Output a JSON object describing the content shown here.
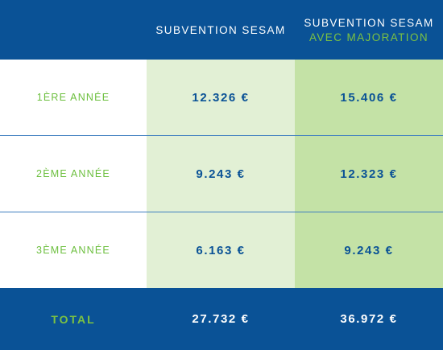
{
  "header": {
    "col1": "",
    "col2": "SUBVENTION SESAM",
    "col3_line1": "SUBVENTION SESAM",
    "col3_line2": "AVEC MAJORATION"
  },
  "rows": [
    {
      "label": "1ÈRE ANNÉE",
      "subvention": "12.326 €",
      "majoration": "15.406 €"
    },
    {
      "label": "2ÈME ANNÉE",
      "subvention": "9.243 €",
      "majoration": "12.323 €"
    },
    {
      "label": "3ÈME ANNÉE",
      "subvention": "6.163 €",
      "majoration": "9.243 €"
    }
  ],
  "total": {
    "label": "TOTAL",
    "subvention": "27.732 €",
    "majoration": "36.972 €"
  },
  "colors": {
    "header_bg": "#0a5296",
    "accent_green": "#7cc242",
    "col2_bg": "#e2f0d5",
    "col3_bg": "#c4e2a6",
    "value_blue": "#0a5296"
  }
}
